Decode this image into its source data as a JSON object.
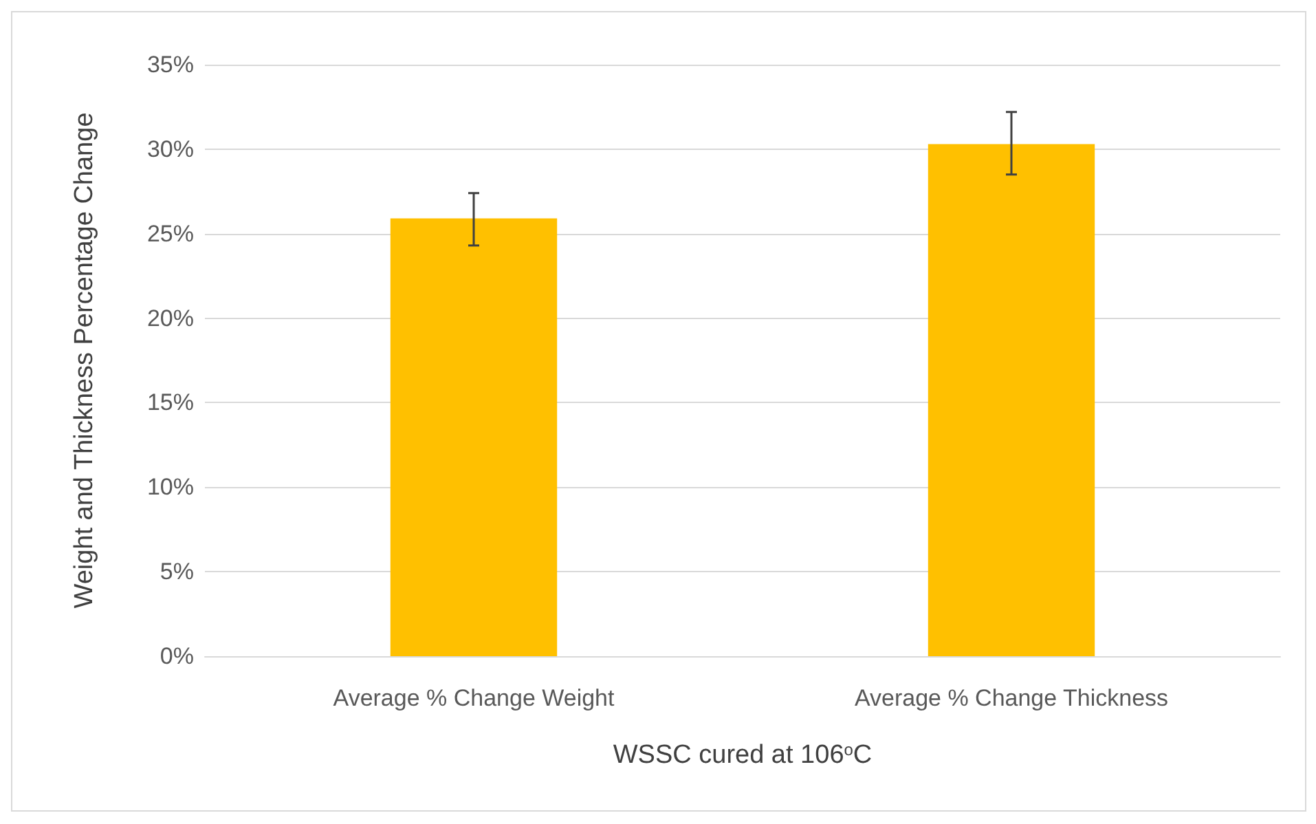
{
  "chart_data": {
    "type": "bar",
    "xlabel": "WSSC cured at 106$^{o}$C",
    "ylabel": "Weight and Thickness Percentage Change",
    "categories": [
      "Average % Change Weight",
      "Average % Change Thickness"
    ],
    "values": [
      25.9,
      30.3
    ],
    "color": "#ffc000",
    "errors": [
      [
        24.3,
        27.4
      ],
      [
        28.5,
        32.2
      ]
    ],
    "ylim": [
      0,
      35
    ],
    "yticks": [
      {
        "value": 0,
        "label": "0%"
      },
      {
        "value": 5,
        "label": "5%"
      },
      {
        "value": 10,
        "label": "10%"
      },
      {
        "value": 15,
        "label": "15%"
      },
      {
        "value": 20,
        "label": "20%"
      },
      {
        "value": 25,
        "label": "25%"
      },
      {
        "value": 30,
        "label": "30%"
      },
      {
        "value": 35,
        "label": "35%"
      }
    ],
    "grid": "y"
  }
}
